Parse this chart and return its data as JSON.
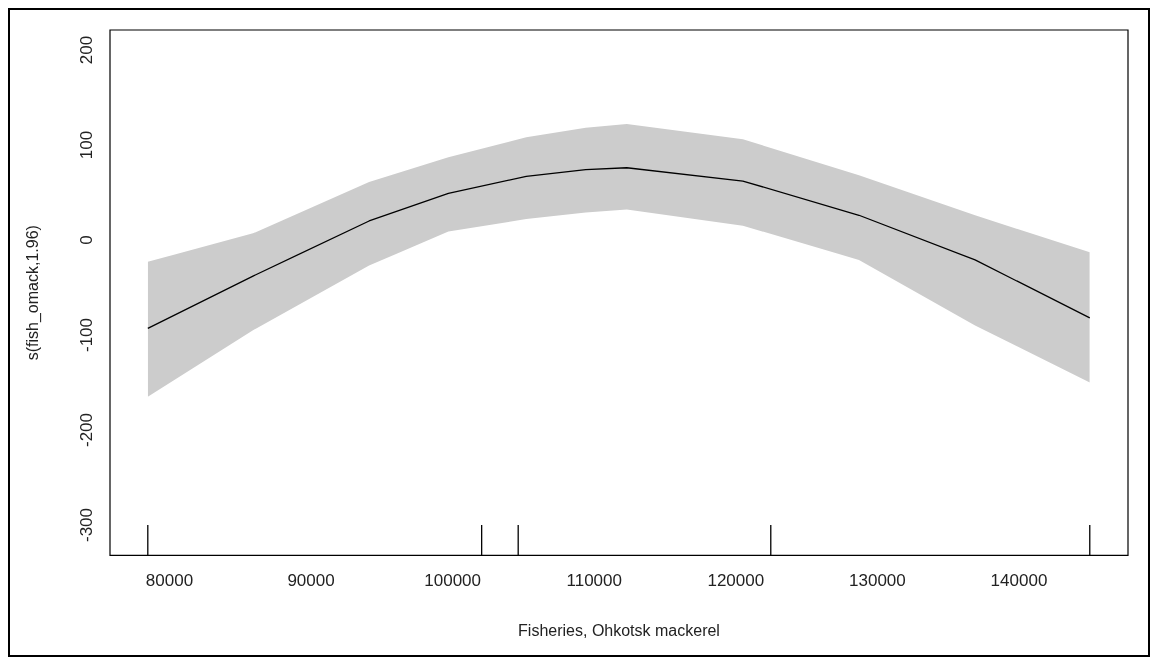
{
  "chart_data": {
    "type": "line",
    "xlabel": "Fisheries, Ohkotsk mackerel",
    "ylabel": "s(fish_omack,1.96)",
    "xlim": [
      75800,
      147700
    ],
    "ylim": [
      -332,
      221
    ],
    "xticks": [
      80000,
      90000,
      100000,
      110000,
      120000,
      130000,
      140000
    ],
    "yticks": [
      -300,
      -200,
      -100,
      0,
      100,
      200
    ],
    "grid": false,
    "legend": false,
    "marker": "none",
    "line_style": "solid",
    "series": [
      {
        "color": "#000000",
        "x": [
          78470,
          85900,
          94100,
          99700,
          105200,
          109400,
          112300,
          120500,
          128700,
          136900,
          145000
        ],
        "values": [
          -93,
          -38,
          20,
          49,
          67,
          74,
          76,
          62,
          26,
          -21,
          -82
        ],
        "lower": [
          -165,
          -95,
          -27,
          9,
          22,
          29,
          32,
          15,
          -21,
          -90,
          -150
        ],
        "upper": [
          -23,
          7,
          61,
          87,
          108,
          118,
          122,
          106,
          68,
          26,
          -13
        ]
      },
      {
        "type": "line",
        "color": "#000000",
        "x": [
          78470,
          78470
        ],
        "values": [
          -332,
          -300
        ]
      },
      {
        "type": "line",
        "color": "#000000",
        "x": [
          102050,
          102050
        ],
        "values": [
          -332,
          -300
        ]
      },
      {
        "type": "line",
        "color": "#000000",
        "x": [
          104630,
          104630
        ],
        "values": [
          -332,
          -300
        ]
      },
      {
        "type": "line",
        "color": "#000000",
        "x": [
          122470,
          122470
        ],
        "values": [
          -332,
          -300
        ]
      },
      {
        "type": "line",
        "color": "#000000",
        "x": [
          145000,
          145000
        ],
        "values": [
          -332,
          -300
        ]
      }
    ]
  }
}
